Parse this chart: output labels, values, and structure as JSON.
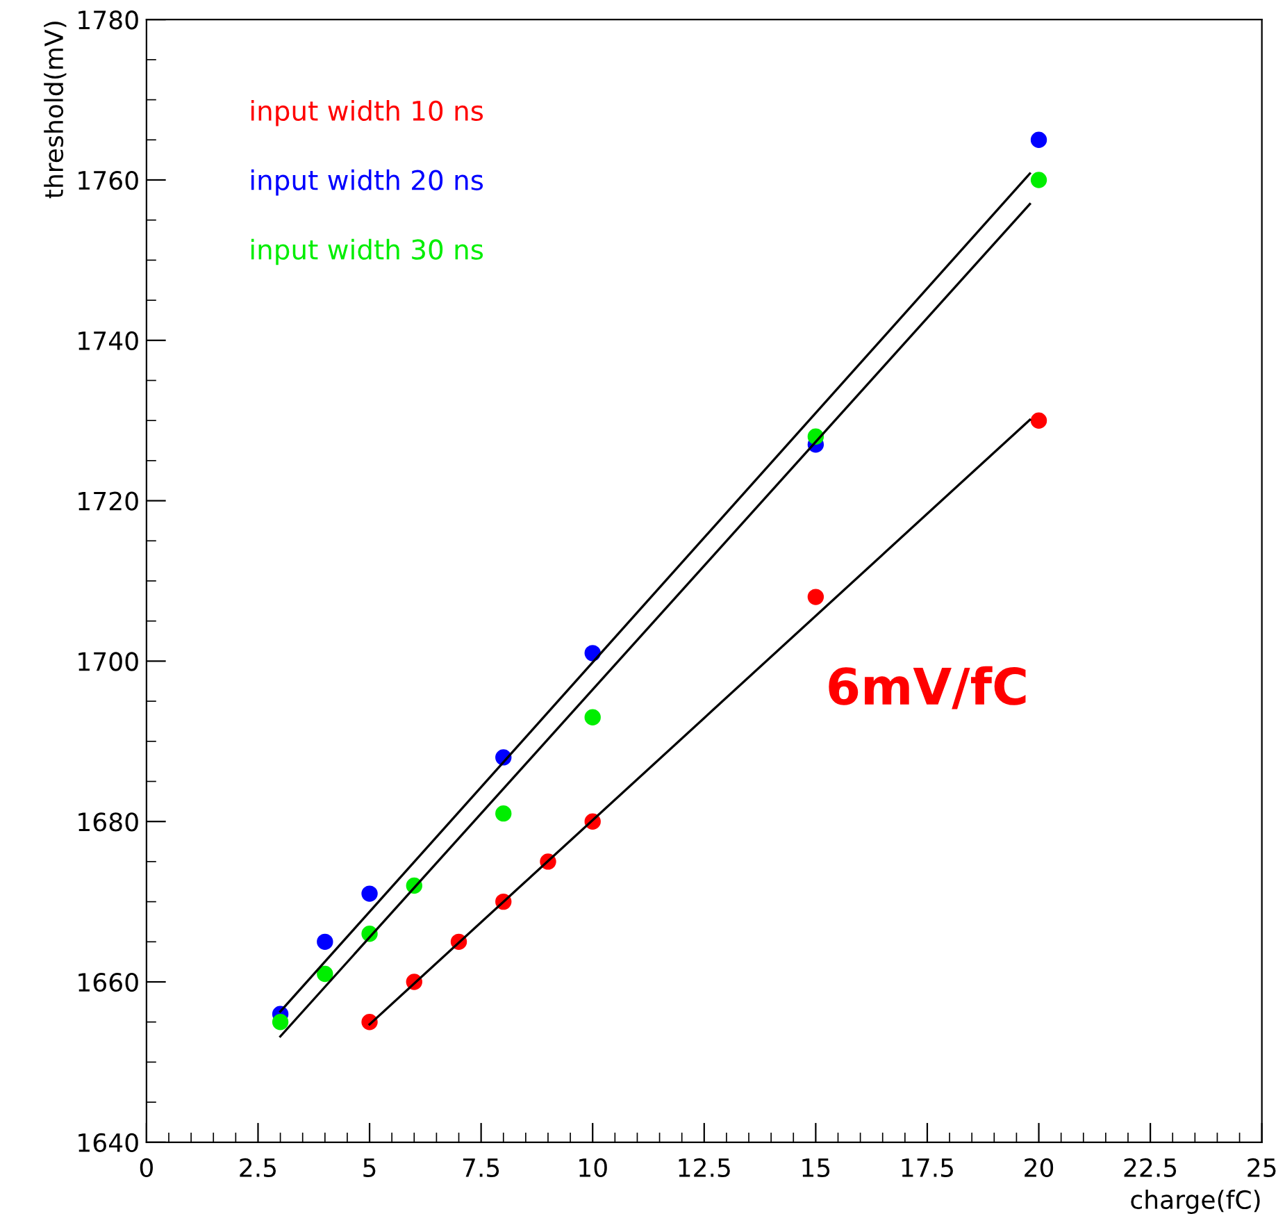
{
  "chart_data": {
    "type": "scatter",
    "xlabel": "charge(fC)",
    "ylabel": "threshold(mV)",
    "xlim": [
      0,
      25
    ],
    "ylim": [
      1640,
      1780
    ],
    "xticks": [
      0,
      2.5,
      5,
      7.5,
      10,
      12.5,
      15,
      17.5,
      20,
      22.5,
      25
    ],
    "yticks": [
      1640,
      1660,
      1680,
      1700,
      1720,
      1740,
      1760,
      1780
    ],
    "grid": false,
    "legend": "top left",
    "annotations": [
      "6mV/fC"
    ],
    "series": [
      {
        "name": "input width 10 ns",
        "color": "#ff0000",
        "marker": "circle",
        "x": [
          5,
          6,
          7,
          8,
          9,
          10,
          15,
          20
        ],
        "values": [
          1655,
          1660,
          1665,
          1670,
          1675,
          1680,
          1708,
          1730
        ]
      },
      {
        "name": "input width 20 ns",
        "color": "#0000ff",
        "marker": "circle",
        "x": [
          3,
          4,
          5,
          8,
          10,
          15,
          20
        ],
        "values": [
          1656,
          1665,
          1671,
          1688,
          1701,
          1727,
          1765
        ]
      },
      {
        "name": "input width 30 ns",
        "color": "#00ee00",
        "marker": "circle",
        "x": [
          3,
          4,
          5,
          6,
          8,
          10,
          15,
          20
        ],
        "values": [
          1655,
          1661,
          1666,
          1672,
          1681,
          1693,
          1728,
          1760
        ]
      },
      {
        "type": "line",
        "color": "#000000",
        "x": [
          3,
          19.8
        ],
        "values": [
          1656.3,
          1760.8
        ]
      },
      {
        "type": "line",
        "color": "#000000",
        "x": [
          3,
          19.8
        ],
        "values": [
          1653.2,
          1757
        ]
      },
      {
        "type": "line",
        "color": "#000000",
        "x": [
          5,
          19.8
        ],
        "values": [
          1654.7,
          1730.1
        ]
      }
    ]
  }
}
